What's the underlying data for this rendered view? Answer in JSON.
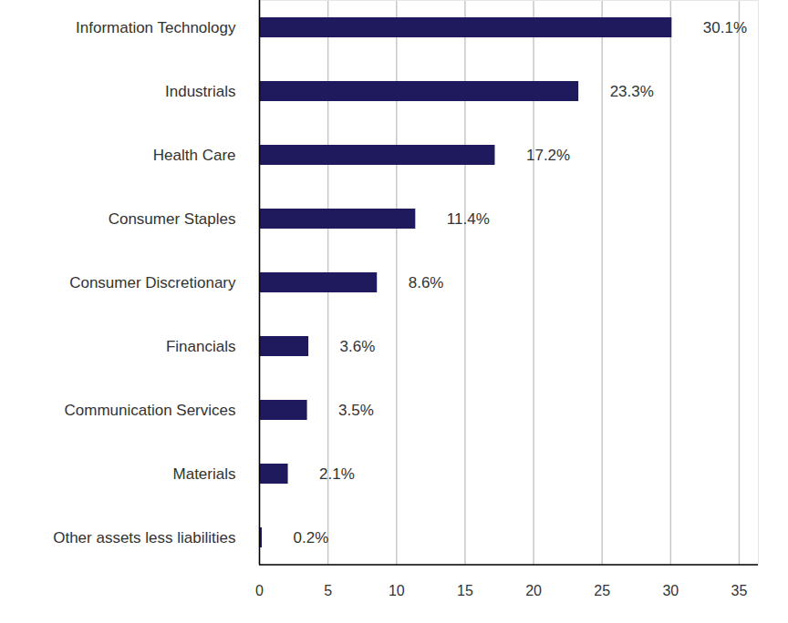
{
  "chart_data": {
    "type": "bar",
    "orientation": "horizontal",
    "categories": [
      "Information Technology",
      "Industrials",
      "Health Care",
      "Consumer Staples",
      "Consumer Discretionary",
      "Financials",
      "Communication Services",
      "Materials",
      "Other assets less liabilities"
    ],
    "values": [
      30.1,
      23.3,
      17.2,
      11.4,
      8.6,
      3.6,
      3.5,
      2.1,
      0.2
    ],
    "value_labels": [
      "30.1%",
      "23.3%",
      "17.2%",
      "11.4%",
      "8.6%",
      "3.6%",
      "3.5%",
      "2.1%",
      "0.2%"
    ],
    "color": "#1f1a5e",
    "xlim": [
      0,
      36.4
    ],
    "xticks": [
      0,
      5,
      10,
      15,
      20,
      25,
      30,
      35
    ],
    "grid": true,
    "data_labels": true
  }
}
